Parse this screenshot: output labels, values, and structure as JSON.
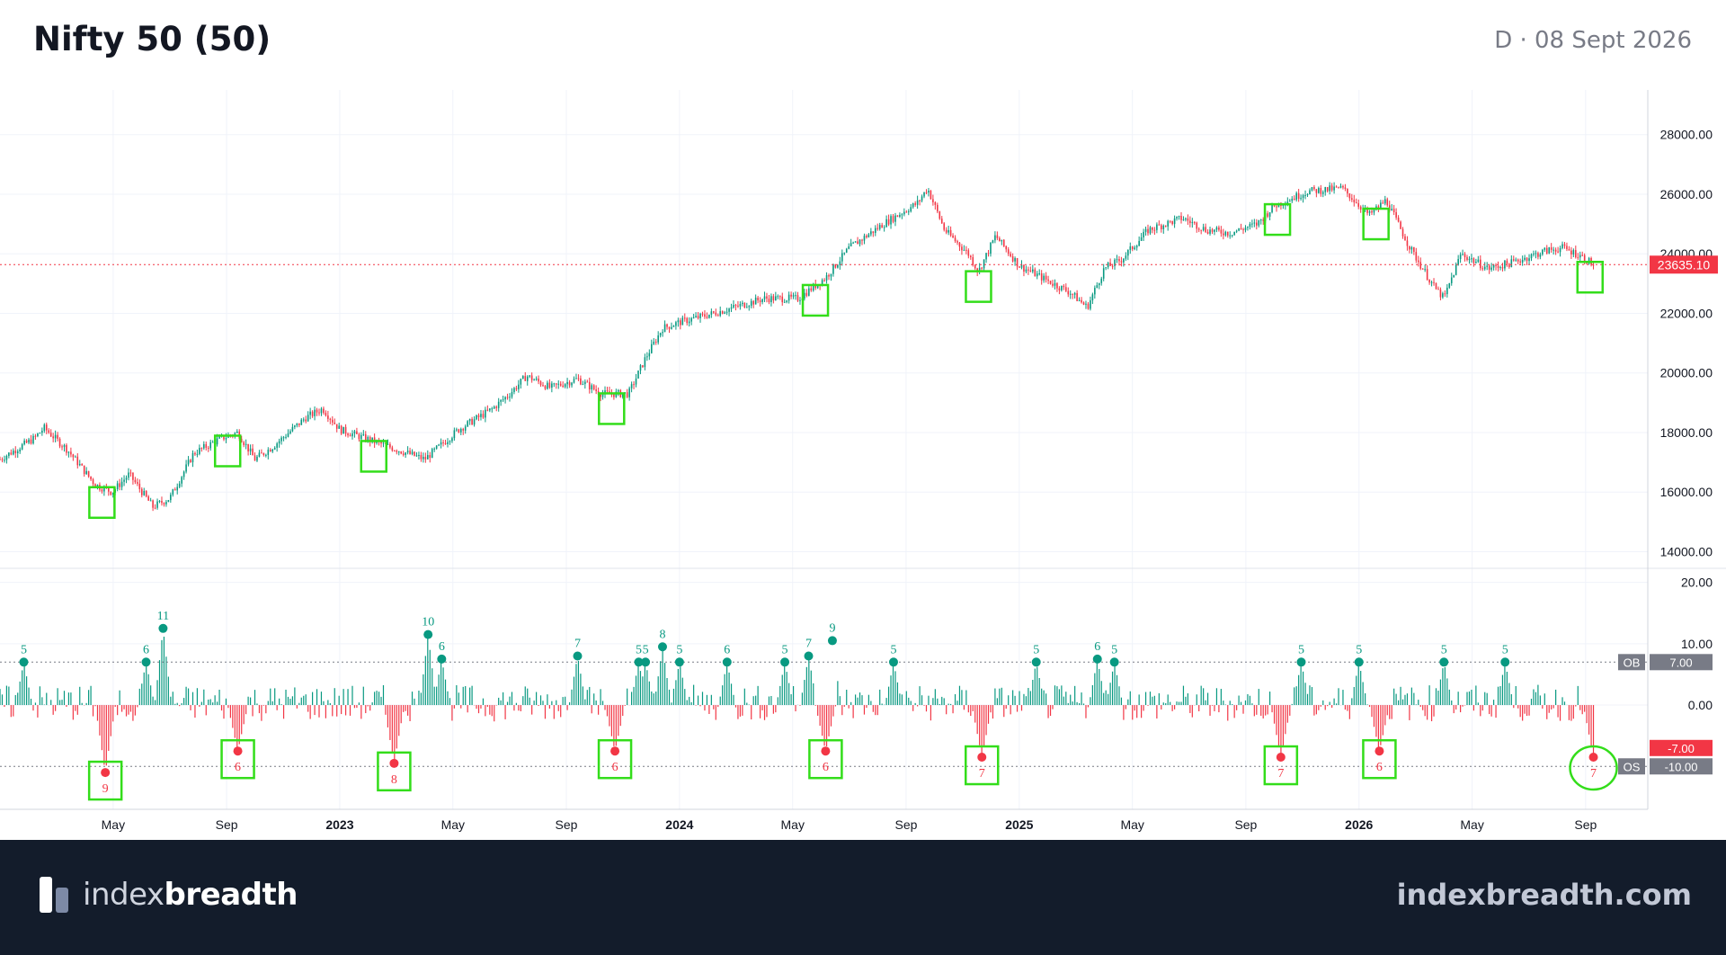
{
  "header": {
    "title": "Nifty 50 (50)",
    "date": "D · 08 Sept 2026"
  },
  "footer": {
    "brand_light": "index",
    "brand_bold": "breadth",
    "site": "indexbreadth.com"
  },
  "colors": {
    "up": "#089981",
    "down": "#f23645",
    "marker": "#33dd1a",
    "last_price_bg": "#f23645",
    "grid": "#f0f3fa",
    "label_bg": "#787b86"
  },
  "chart_data": {
    "type": "candlestick",
    "x_ticks": [
      "May",
      "Sep",
      "2023",
      "May",
      "Sep",
      "2024",
      "May",
      "Sep",
      "2025",
      "May",
      "Sep",
      "2026",
      "May",
      "Sep"
    ],
    "x_tick_months": [
      2022.333,
      2022.667,
      2023.0,
      2023.333,
      2023.667,
      2024.0,
      2024.333,
      2024.667,
      2025.0,
      2025.333,
      2025.667,
      2026.0,
      2026.333,
      2026.667
    ],
    "price_axis": {
      "ticks": [
        "14000.00",
        "16000.00",
        "18000.00",
        "20000.00",
        "22000.00",
        "24000.00",
        "26000.00",
        "28000.00"
      ],
      "tick_values": [
        14000,
        16000,
        18000,
        20000,
        22000,
        24000,
        26000,
        28000
      ],
      "range": [
        13500,
        29500
      ]
    },
    "last_price": "23635.10",
    "last_price_value": 23635.1,
    "price_path": [
      [
        2022.0,
        17100
      ],
      [
        2022.1,
        17800
      ],
      [
        2022.13,
        18150
      ],
      [
        2022.2,
        17400
      ],
      [
        2022.28,
        16250
      ],
      [
        2022.33,
        16000
      ],
      [
        2022.38,
        16600
      ],
      [
        2022.45,
        15500
      ],
      [
        2022.5,
        15800
      ],
      [
        2022.57,
        17300
      ],
      [
        2022.65,
        17800
      ],
      [
        2022.7,
        18000
      ],
      [
        2022.75,
        17100
      ],
      [
        2022.8,
        17500
      ],
      [
        2022.9,
        18500
      ],
      [
        2022.95,
        18800
      ],
      [
        2023.0,
        18100
      ],
      [
        2023.1,
        17700
      ],
      [
        2023.2,
        17300
      ],
      [
        2023.25,
        17100
      ],
      [
        2023.35,
        18100
      ],
      [
        2023.45,
        18800
      ],
      [
        2023.5,
        19300
      ],
      [
        2023.55,
        19900
      ],
      [
        2023.62,
        19500
      ],
      [
        2023.7,
        19800
      ],
      [
        2023.77,
        19300
      ],
      [
        2023.85,
        19300
      ],
      [
        2023.9,
        20500
      ],
      [
        2023.95,
        21500
      ],
      [
        2024.0,
        21700
      ],
      [
        2024.1,
        22000
      ],
      [
        2024.25,
        22500
      ],
      [
        2024.35,
        22500
      ],
      [
        2024.43,
        23200
      ],
      [
        2024.5,
        24200
      ],
      [
        2024.6,
        25000
      ],
      [
        2024.7,
        25700
      ],
      [
        2024.73,
        26200
      ],
      [
        2024.78,
        24800
      ],
      [
        2024.85,
        24000
      ],
      [
        2024.88,
        23400
      ],
      [
        2024.93,
        24600
      ],
      [
        2025.0,
        23600
      ],
      [
        2025.1,
        23000
      ],
      [
        2025.15,
        22700
      ],
      [
        2025.2,
        22200
      ],
      [
        2025.25,
        23500
      ],
      [
        2025.3,
        23800
      ],
      [
        2025.38,
        24800
      ],
      [
        2025.48,
        25200
      ],
      [
        2025.55,
        24800
      ],
      [
        2025.62,
        24700
      ],
      [
        2025.7,
        25000
      ],
      [
        2025.75,
        25600
      ],
      [
        2025.85,
        26100
      ],
      [
        2025.95,
        26200
      ],
      [
        2026.03,
        25300
      ],
      [
        2026.08,
        25800
      ],
      [
        2026.15,
        24200
      ],
      [
        2026.22,
        22900
      ],
      [
        2026.25,
        22500
      ],
      [
        2026.3,
        24000
      ],
      [
        2026.38,
        23500
      ],
      [
        2026.45,
        23700
      ],
      [
        2026.55,
        24100
      ],
      [
        2026.6,
        24200
      ],
      [
        2026.65,
        23950
      ],
      [
        2026.69,
        23635
      ]
    ],
    "price_markers": [
      2022.3,
      2022.67,
      2023.1,
      2023.8,
      2024.4,
      2024.88,
      2025.76,
      2026.05,
      2026.68
    ],
    "oscillator": {
      "axis_ticks": [
        "20.00",
        "10.00",
        "0.00"
      ],
      "axis_tick_values": [
        20,
        10,
        0
      ],
      "range": [
        -17,
        22
      ],
      "ob_label": "OB",
      "ob_value": "7.00",
      "ob_level": 7,
      "os_label": "OS",
      "os_value": "-10.00",
      "os_level": -10,
      "last_label": "-7.00",
      "last_value": -7,
      "peaks": [
        {
          "x": 2022.07,
          "v": 7,
          "label": "5"
        },
        {
          "x": 2022.43,
          "v": 7,
          "label": "6"
        },
        {
          "x": 2022.48,
          "v": 12.5,
          "label": "11"
        },
        {
          "x": 2023.26,
          "v": 11.5,
          "label": "10"
        },
        {
          "x": 2023.3,
          "v": 7.5,
          "label": "6"
        },
        {
          "x": 2023.7,
          "v": 8,
          "label": "7"
        },
        {
          "x": 2023.88,
          "v": 7,
          "label": "5"
        },
        {
          "x": 2023.9,
          "v": 7,
          "label": "5"
        },
        {
          "x": 2023.95,
          "v": 9.5,
          "label": "8"
        },
        {
          "x": 2024.0,
          "v": 7,
          "label": "5"
        },
        {
          "x": 2024.14,
          "v": 7,
          "label": "6"
        },
        {
          "x": 2024.31,
          "v": 7,
          "label": "5"
        },
        {
          "x": 2024.38,
          "v": 8,
          "label": "7"
        },
        {
          "x": 2024.45,
          "v": 10.5,
          "label": "9"
        },
        {
          "x": 2024.63,
          "v": 7,
          "label": "5"
        },
        {
          "x": 2025.05,
          "v": 7,
          "label": "5"
        },
        {
          "x": 2025.23,
          "v": 7.5,
          "label": "6"
        },
        {
          "x": 2025.28,
          "v": 7,
          "label": "5"
        },
        {
          "x": 2025.83,
          "v": 7,
          "label": "5"
        },
        {
          "x": 2026.0,
          "v": 7,
          "label": "5"
        },
        {
          "x": 2026.25,
          "v": 7,
          "label": "5"
        },
        {
          "x": 2026.43,
          "v": 7,
          "label": "5"
        }
      ],
      "troughs": [
        {
          "x": 2022.31,
          "v": -11,
          "label": "9"
        },
        {
          "x": 2022.7,
          "v": -7.5,
          "label": "6"
        },
        {
          "x": 2023.16,
          "v": -9.5,
          "label": "8"
        },
        {
          "x": 2023.81,
          "v": -7.5,
          "label": "6"
        },
        {
          "x": 2024.43,
          "v": -7.5,
          "label": "6"
        },
        {
          "x": 2024.89,
          "v": -8.5,
          "label": "7"
        },
        {
          "x": 2025.77,
          "v": -8.5,
          "label": "7"
        },
        {
          "x": 2026.06,
          "v": -7.5,
          "label": "6"
        },
        {
          "x": 2026.69,
          "v": -8.5,
          "label": "7"
        }
      ]
    }
  }
}
